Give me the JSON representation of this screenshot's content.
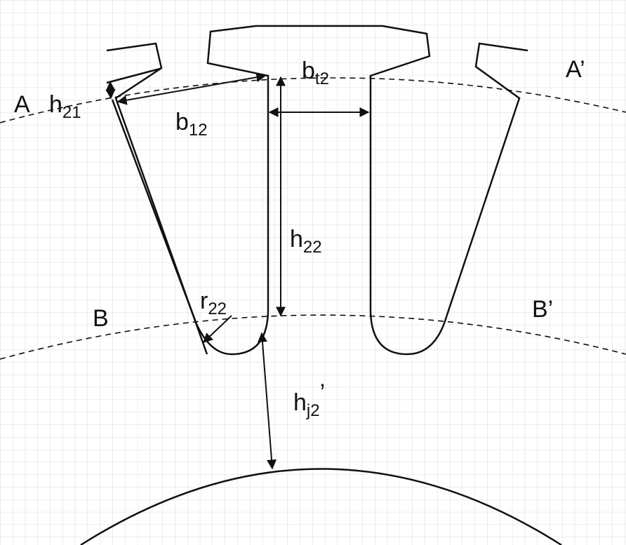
{
  "labels": {
    "A": "A",
    "A_prime": "A’",
    "B": "B",
    "B_prime": "B’",
    "h21_main": "h",
    "h21_sub": "21",
    "b12_main": "b",
    "b12_sub": "12",
    "bt2_main": "b",
    "bt2_sub": "t2",
    "h22_main": "h",
    "h22_sub": "22",
    "r22_main": "r",
    "r22_sub": "22",
    "hj2_main": "h",
    "hj2_sub": "j2",
    "hj2_prime": "’"
  },
  "colors": {
    "stroke": "#111111",
    "grid": "#d9d9d9",
    "background": "#ffffff"
  }
}
